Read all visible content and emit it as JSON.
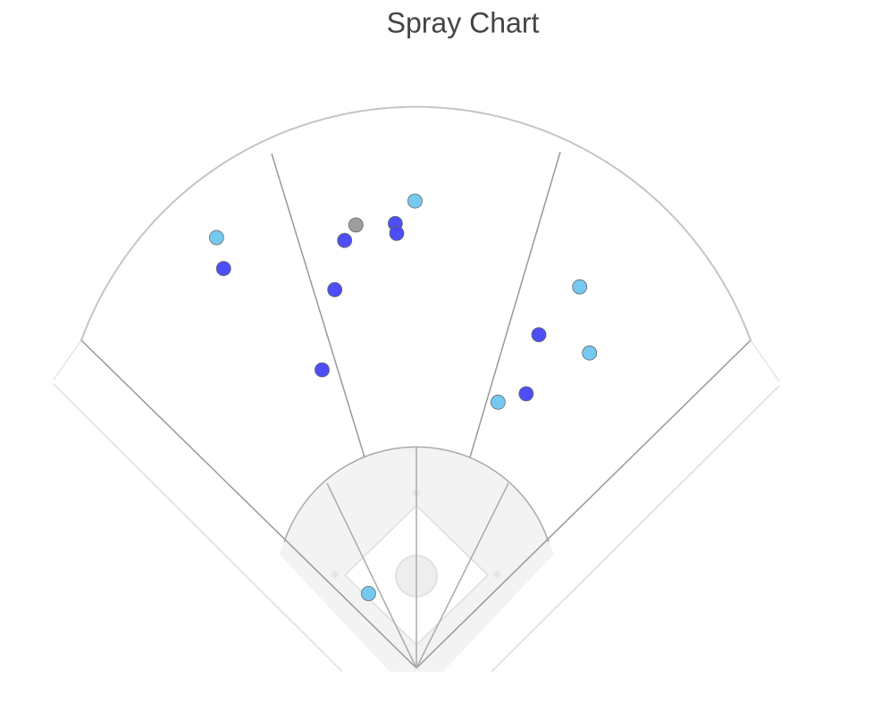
{
  "chart_data": {
    "type": "scatter",
    "title": "Spray Chart",
    "series": [
      {
        "color": "#6ec6f0",
        "x": [
          -1,
          -142,
          116,
          123,
          58,
          -34
        ],
        "values": [
          332,
          306,
          271,
          224,
          189,
          53
        ]
      },
      {
        "color": "#4444f5",
        "x": [
          -15,
          -14,
          -51,
          -137,
          -58,
          -67,
          87,
          78
        ],
        "values": [
          316,
          309,
          304,
          284,
          269,
          212,
          237,
          195
        ]
      },
      {
        "color": "#999999",
        "x": [
          -43
        ],
        "values": [
          315
        ]
      }
    ]
  }
}
